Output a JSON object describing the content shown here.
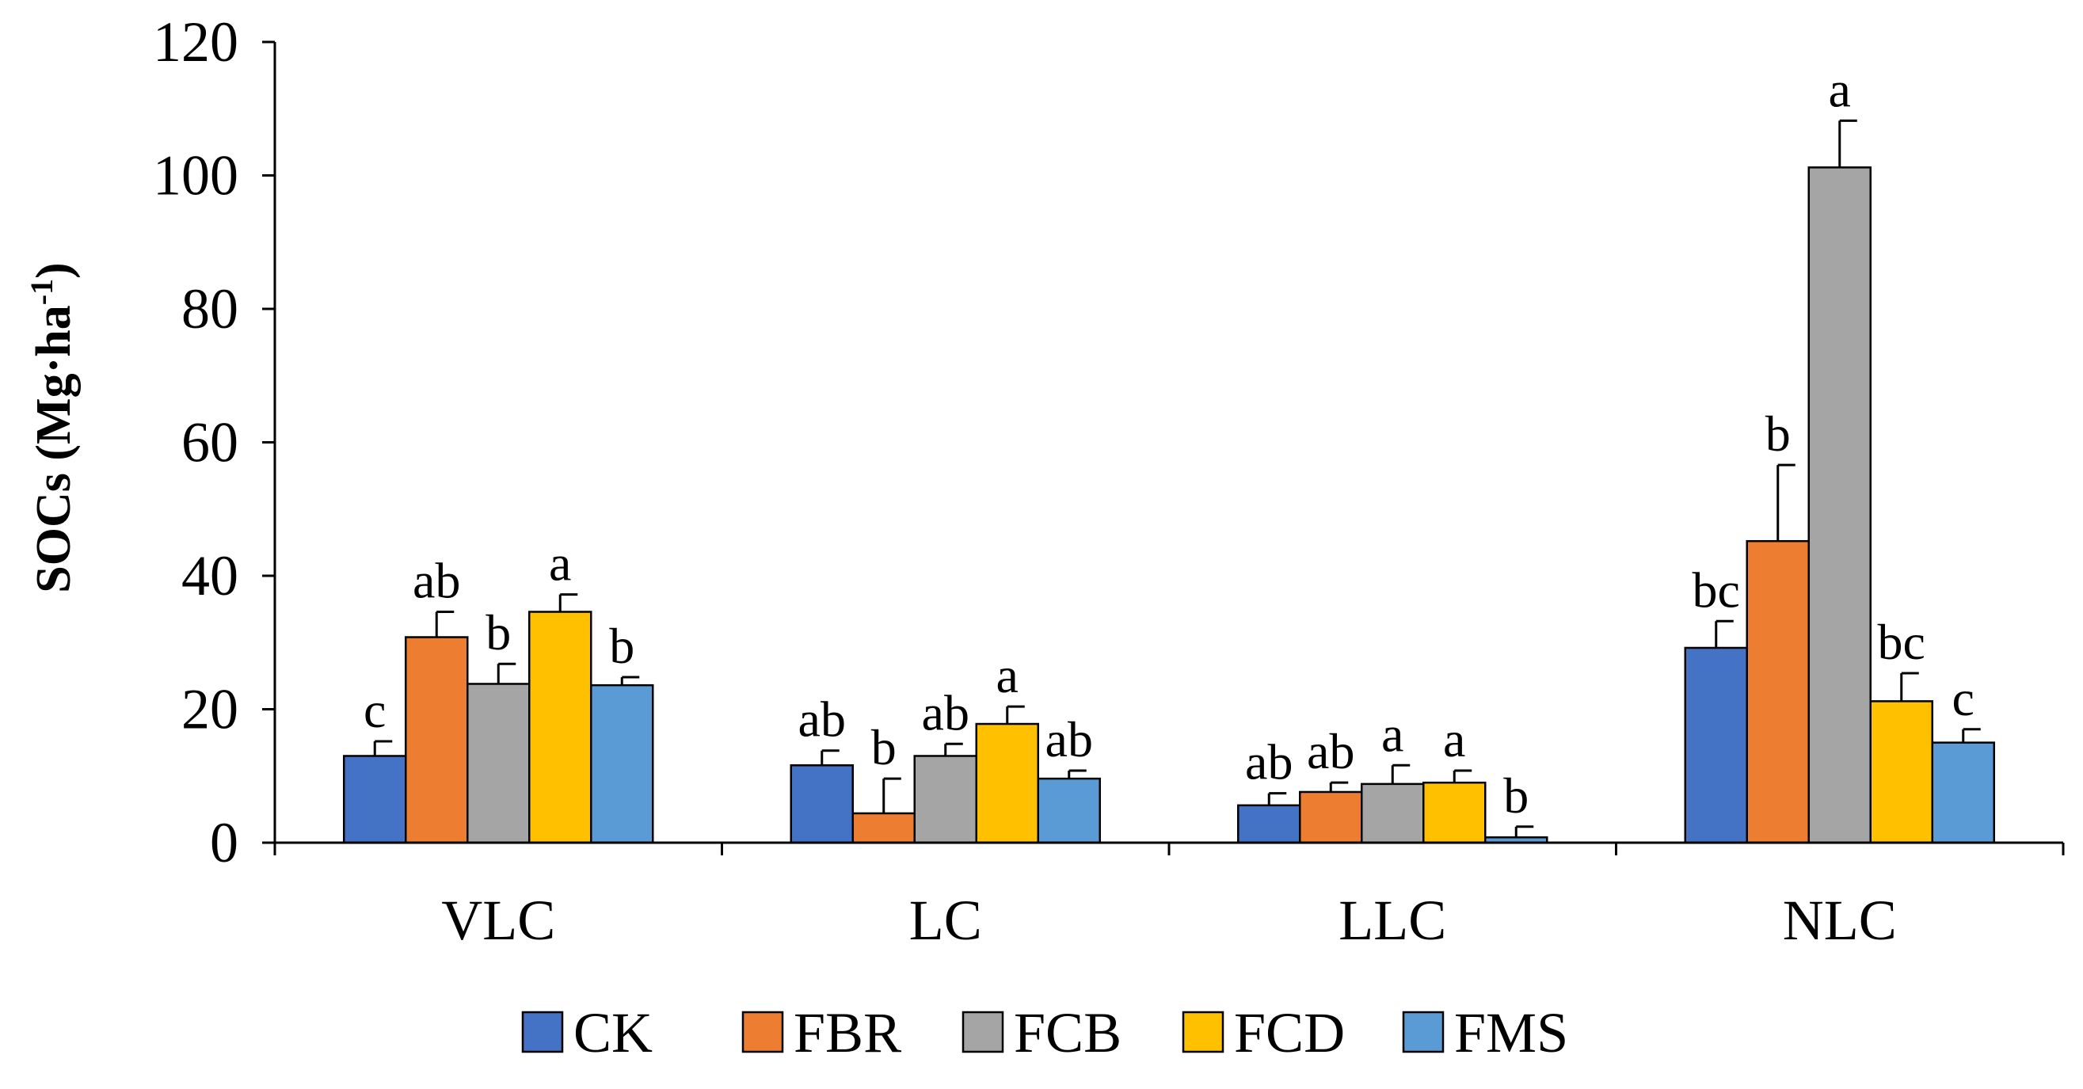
{
  "chart_data": {
    "type": "bar",
    "title": "",
    "xlabel": "",
    "ylabel": {
      "main": "SOCs (Mg·ha",
      "sup": "-1",
      "close": ")"
    },
    "ylim": [
      0,
      120
    ],
    "yticks": [
      0,
      20,
      40,
      60,
      80,
      100,
      120
    ],
    "categories": [
      "VLC",
      "LC",
      "LLC",
      "NLC"
    ],
    "legend_position": "bottom",
    "series": [
      {
        "name": "CK",
        "color": "#4472C4",
        "values": [
          13.0,
          11.6,
          5.6,
          29.2
        ],
        "errors": [
          2.2,
          2.2,
          1.8,
          4.0
        ],
        "labels": [
          "c",
          "ab",
          "ab",
          "bc"
        ]
      },
      {
        "name": "FBR",
        "color": "#ED7D31",
        "values": [
          30.8,
          4.4,
          7.6,
          45.2
        ],
        "errors": [
          3.8,
          5.2,
          1.4,
          11.4
        ],
        "labels": [
          "ab",
          "b",
          "ab",
          "b"
        ]
      },
      {
        "name": "FCB",
        "color": "#A5A5A5",
        "values": [
          23.8,
          13.0,
          8.8,
          101.2
        ],
        "errors": [
          3.0,
          1.8,
          2.8,
          7.0
        ],
        "labels": [
          "b",
          "ab",
          "a",
          "a"
        ]
      },
      {
        "name": "FCD",
        "color": "#FFC000",
        "values": [
          34.6,
          17.8,
          9.0,
          21.2
        ],
        "errors": [
          2.6,
          2.6,
          1.8,
          4.2
        ],
        "labels": [
          "a",
          "a",
          "a",
          "bc"
        ]
      },
      {
        "name": "FMS",
        "color": "#5B9BD5",
        "values": [
          23.6,
          9.6,
          0.8,
          15.0
        ],
        "errors": [
          1.2,
          1.2,
          1.6,
          2.0
        ],
        "labels": [
          "b",
          "ab",
          "b",
          "c"
        ]
      }
    ]
  }
}
